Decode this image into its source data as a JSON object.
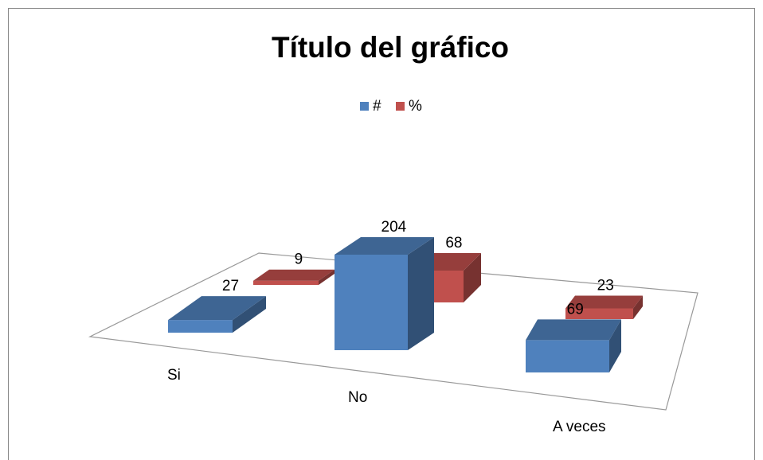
{
  "chart_data": {
    "type": "bar3d",
    "title": "Título del gráfico",
    "categories": [
      "Si",
      "No",
      "A veces"
    ],
    "series": [
      {
        "name": "#",
        "color": "#4f81bd",
        "values": [
          27,
          204,
          69
        ]
      },
      {
        "name": "%",
        "color": "#c0504d",
        "values": [
          9,
          68,
          23
        ]
      }
    ],
    "legend": "top"
  }
}
